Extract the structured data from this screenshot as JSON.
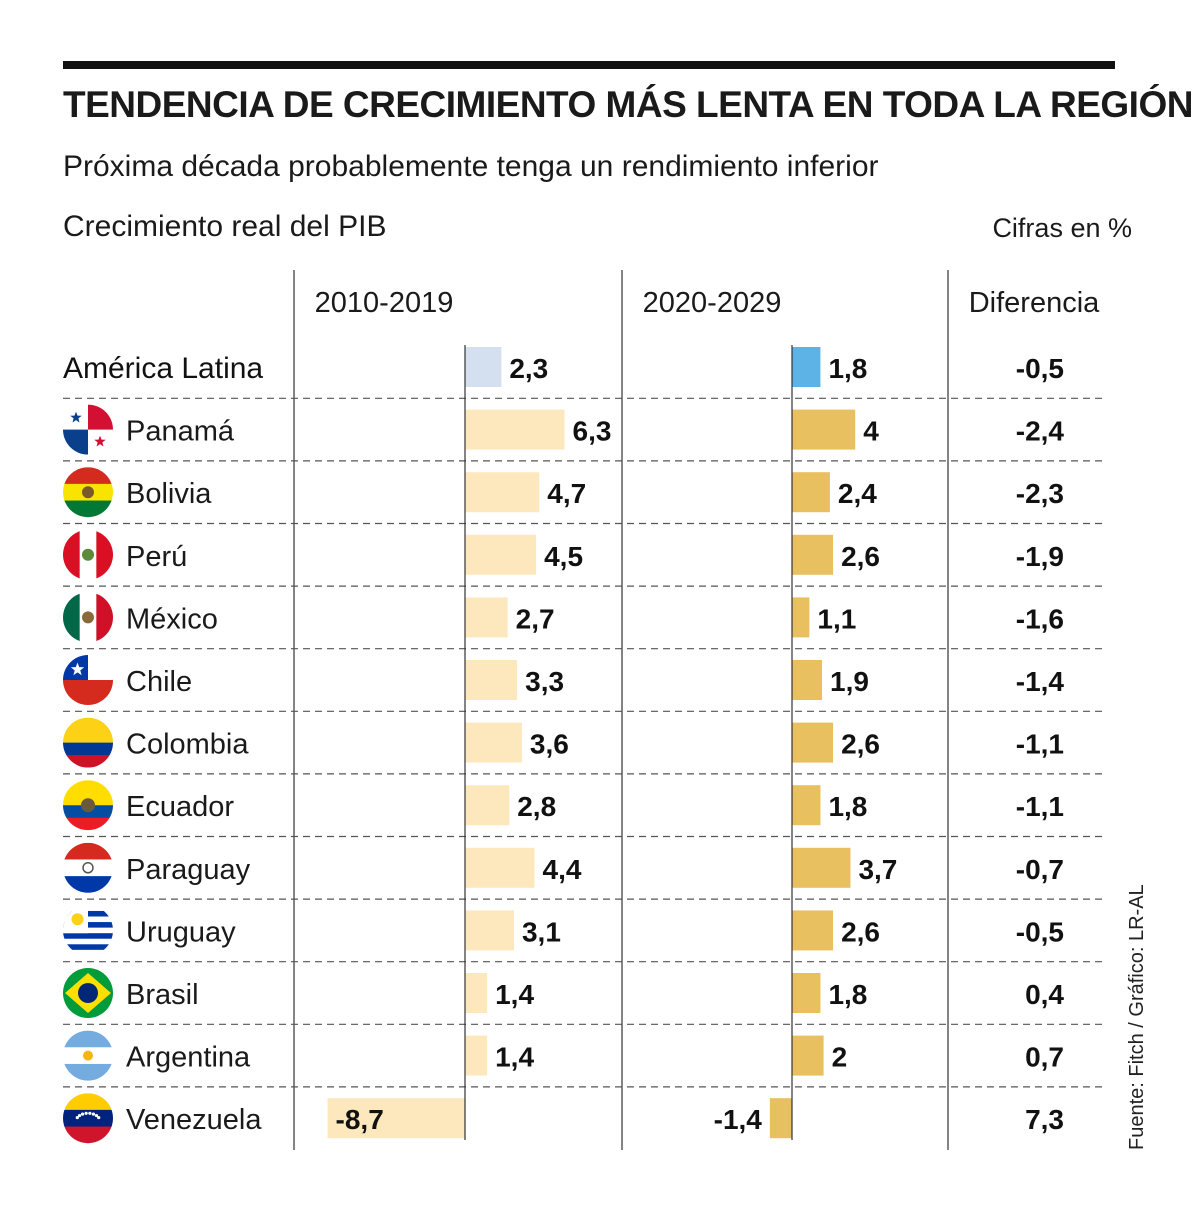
{
  "title": "TENDENCIA DE CRECIMIENTO MÁS LENTA EN TODA LA REGIÓN",
  "subtitle": "Próxima década probablemente tenga un rendimiento inferior",
  "metric_label": "Crecimiento real del PIB",
  "units_note": "Cifras en %",
  "source": "Fuente: Fitch / Gráfico: LR-AL",
  "colors": {
    "region_2010": "#d4dff0",
    "region_2020": "#5db3e6",
    "bar_2010": "#fde8bd",
    "bar_2020": "#e8c060",
    "rule": "#111111",
    "grid": "#555555"
  },
  "chart_data": {
    "type": "bar",
    "title": "TENDENCIA DE CRECIMIENTO MÁS LENTA EN TODA LA REGIÓN",
    "subtitle": "Próxima década probablemente tenga un rendimiento inferior",
    "ylabel": "Crecimiento real del PIB",
    "columns": [
      "2010-2019",
      "2020-2029",
      "Diferencia"
    ],
    "categories": [
      "América Latina",
      "Panamá",
      "Bolivia",
      "Perú",
      "México",
      "Chile",
      "Colombia",
      "Ecuador",
      "Paraguay",
      "Uruguay",
      "Brasil",
      "Argentina",
      "Venezuela"
    ],
    "flags": [
      "",
      "panama-flag-icon",
      "bolivia-flag-icon",
      "peru-flag-icon",
      "mexico-flag-icon",
      "chile-flag-icon",
      "colombia-flag-icon",
      "ecuador-flag-icon",
      "paraguay-flag-icon",
      "uruguay-flag-icon",
      "brazil-flag-icon",
      "argentina-flag-icon",
      "venezuela-flag-icon"
    ],
    "series": [
      {
        "name": "2010-2019",
        "values": [
          2.3,
          6.3,
          4.7,
          4.5,
          2.7,
          3.3,
          3.6,
          2.8,
          4.4,
          3.1,
          1.4,
          1.4,
          -8.7
        ]
      },
      {
        "name": "2020-2029",
        "values": [
          1.8,
          4,
          2.4,
          2.6,
          1.1,
          1.9,
          2.6,
          1.8,
          3.7,
          2.6,
          1.8,
          2,
          -1.4
        ]
      }
    ],
    "value_labels": {
      "2010-2019": [
        "2,3",
        "6,3",
        "4,7",
        "4,5",
        "2,7",
        "3,3",
        "3,6",
        "2,8",
        "4,4",
        "3,1",
        "1,4",
        "1,4",
        "-8,7"
      ],
      "2020-2029": [
        "1,8",
        "4",
        "2,4",
        "2,6",
        "1,1",
        "1,9",
        "2,6",
        "1,8",
        "3,7",
        "2,6",
        "1,8",
        "2",
        "-1,4"
      ],
      "Diferencia": [
        "-0,5",
        "-2,4",
        "-2,3",
        "-1,9",
        "-1,6",
        "-1,4",
        "-1,1",
        "-1,1",
        "-0,7",
        "-0,5",
        "0,4",
        "0,7",
        "7,3"
      ]
    }
  }
}
